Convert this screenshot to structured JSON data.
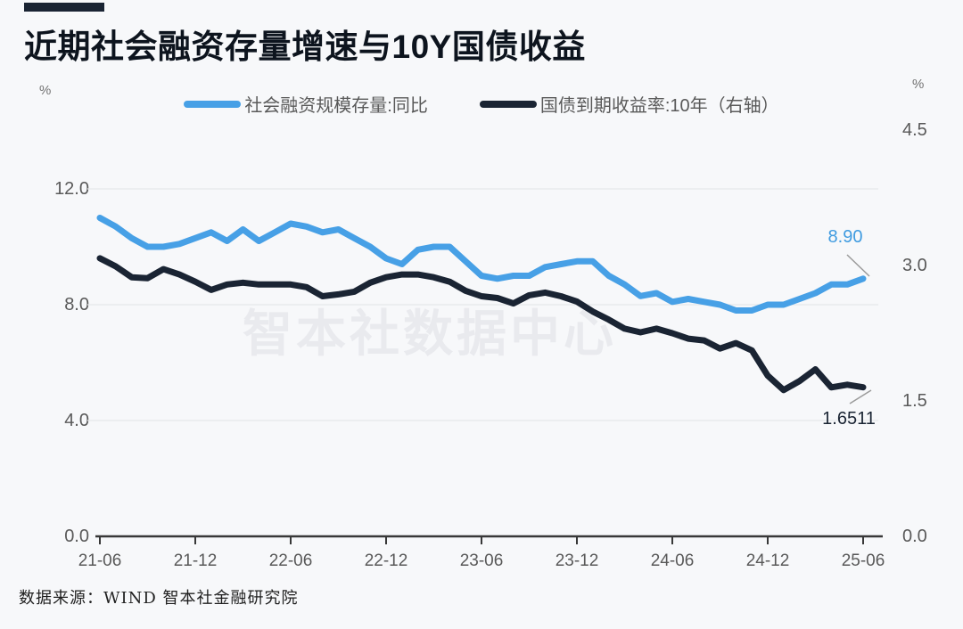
{
  "header": {
    "title": "近期社会融资存量增速与10Y国债收益"
  },
  "legend": {
    "items": [
      {
        "label": "社会融资规模存量:同比",
        "color": "#47a0e6"
      },
      {
        "label": "国债到期收益率:10年（右轴）",
        "color": "#1a2433"
      }
    ]
  },
  "axes": {
    "left": {
      "unit": "%",
      "tick_labels": [
        "12.0",
        "8.0",
        "4.0",
        "0.0"
      ]
    },
    "right": {
      "unit": "%",
      "tick_labels": [
        "4.5",
        "3.0",
        "1.5",
        "0.0"
      ]
    },
    "x": {
      "tick_labels": [
        "21-06",
        "21-12",
        "22-06",
        "22-12",
        "23-06",
        "23-12",
        "24-06",
        "24-12",
        "25-06"
      ]
    }
  },
  "annotations": {
    "blue_last": "8.90",
    "dark_last": "1.6511"
  },
  "watermark": "智本社数据中心",
  "footer": {
    "source": "数据来源：WIND 智本社金融研究院"
  },
  "chart_data": {
    "type": "line",
    "title": "近期社会融资存量增速与10Y国债收益",
    "x": [
      "21-06",
      "21-07",
      "21-08",
      "21-09",
      "21-10",
      "21-11",
      "21-12",
      "22-01",
      "22-02",
      "22-03",
      "22-04",
      "22-05",
      "22-06",
      "22-07",
      "22-08",
      "22-09",
      "22-10",
      "22-11",
      "22-12",
      "23-01",
      "23-02",
      "23-03",
      "23-04",
      "23-05",
      "23-06",
      "23-07",
      "23-08",
      "23-09",
      "23-10",
      "23-11",
      "23-12",
      "24-01",
      "24-02",
      "24-03",
      "24-04",
      "24-05",
      "24-06",
      "24-07",
      "24-08",
      "24-09",
      "24-10",
      "24-11",
      "24-12",
      "25-01",
      "25-02",
      "25-03",
      "25-04",
      "25-05",
      "25-06"
    ],
    "x_tick_labels": [
      "21-06",
      "21-12",
      "22-06",
      "22-12",
      "23-06",
      "23-12",
      "24-06",
      "24-12",
      "25-06"
    ],
    "series": [
      {
        "name": "社会融资规模存量:同比",
        "axis": "left",
        "color": "#47a0e6",
        "values": [
          11.0,
          10.7,
          10.3,
          10.0,
          10.0,
          10.1,
          10.3,
          10.5,
          10.2,
          10.6,
          10.2,
          10.5,
          10.8,
          10.7,
          10.5,
          10.6,
          10.3,
          10.0,
          9.6,
          9.4,
          9.9,
          10.0,
          10.0,
          9.5,
          9.0,
          8.9,
          9.0,
          9.0,
          9.3,
          9.4,
          9.5,
          9.5,
          9.0,
          8.7,
          8.3,
          8.4,
          8.1,
          8.2,
          8.1,
          8.0,
          7.8,
          7.8,
          8.0,
          8.0,
          8.2,
          8.4,
          8.7,
          8.7,
          8.9
        ]
      },
      {
        "name": "国债到期收益率:10年（右轴）",
        "axis": "right",
        "color": "#1a2433",
        "values": [
          3.08,
          2.99,
          2.87,
          2.86,
          2.96,
          2.9,
          2.82,
          2.73,
          2.79,
          2.81,
          2.79,
          2.79,
          2.79,
          2.76,
          2.66,
          2.68,
          2.71,
          2.81,
          2.87,
          2.9,
          2.9,
          2.87,
          2.82,
          2.72,
          2.66,
          2.64,
          2.58,
          2.67,
          2.7,
          2.66,
          2.6,
          2.49,
          2.4,
          2.3,
          2.26,
          2.3,
          2.25,
          2.19,
          2.17,
          2.08,
          2.14,
          2.06,
          1.78,
          1.62,
          1.72,
          1.85,
          1.65,
          1.68,
          1.6511
        ]
      }
    ],
    "left_axis": {
      "label": "%",
      "range": [
        0,
        12
      ],
      "ticks": [
        0,
        4,
        8,
        12
      ]
    },
    "right_axis": {
      "label": "%",
      "range": [
        0,
        4.5
      ],
      "ticks": [
        0,
        1.5,
        3.0,
        4.5
      ]
    },
    "grid": "horizontal",
    "legend_position": "top",
    "annotations": [
      {
        "series": 0,
        "x": "25-06",
        "text": "8.90"
      },
      {
        "series": 1,
        "x": "25-06",
        "text": "1.6511"
      }
    ]
  }
}
